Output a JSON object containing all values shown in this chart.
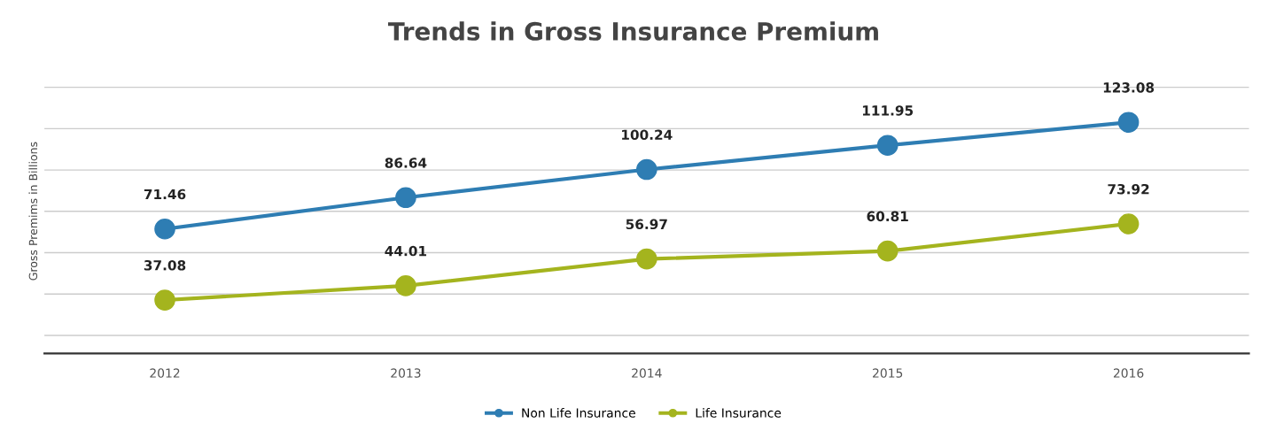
{
  "chart_data": {
    "type": "line",
    "title": "Trends in Gross Insurance Premium",
    "ylabel": "Gross Premims in Billions",
    "categories": [
      "2012",
      "2013",
      "2014",
      "2015",
      "2016"
    ],
    "series": [
      {
        "name": "Non Life Insurance",
        "color": "#2e7db3",
        "values": [
          71.46,
          86.64,
          100.24,
          111.95,
          123.08
        ]
      },
      {
        "name": "Life Insurance",
        "color": "#a4b41e",
        "values": [
          37.08,
          44.01,
          56.97,
          60.81,
          73.92
        ]
      }
    ],
    "tick_labels": "x",
    "grid": "y",
    "legend": "bottom",
    "marker": "circle",
    "line_style": "solid",
    "data_labels": true
  }
}
